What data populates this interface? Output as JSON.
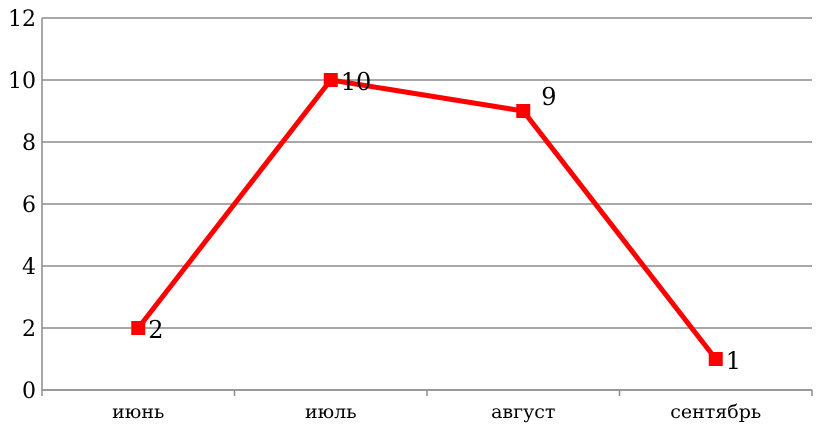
{
  "chart_data": {
    "type": "line",
    "categories": [
      "июнь",
      "июль",
      "август",
      "сентябрь"
    ],
    "series": [
      {
        "values": [
          2,
          10,
          9,
          1
        ],
        "color": "#ff0000"
      }
    ],
    "data_labels": [
      "2",
      "10",
      "9",
      "1"
    ],
    "ylim": [
      0,
      12
    ],
    "yticks": [
      "0",
      "2",
      "4",
      "6",
      "8",
      "10",
      "12"
    ],
    "grid": true,
    "legend": "none",
    "marker": "square"
  },
  "colors": {
    "grid": "#8c8c8c",
    "series": "#ff0000",
    "text": "#000000"
  }
}
